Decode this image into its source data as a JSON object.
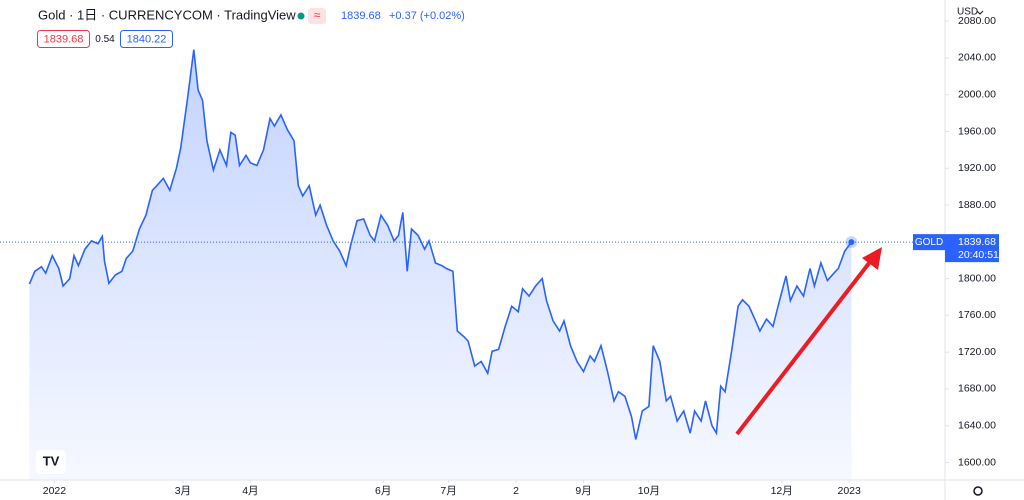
{
  "header": {
    "title": "Gold · 1日 · CURRENCYCOM · TradingView",
    "last": "1839.68",
    "change": "+0.37 (+0.02%)",
    "bid": "1839.68",
    "spread": "0.54",
    "ask": "1840.22",
    "currency": "USD"
  },
  "price_label": {
    "symbol": "GOLD",
    "price": "1839.68",
    "countdown": "20:40:51"
  },
  "chart_data": {
    "type": "area",
    "color": "#2962ff",
    "grid": false,
    "x": [
      -11.5,
      -9,
      -6,
      -4,
      -1,
      2,
      4,
      7,
      9,
      11,
      14,
      17,
      20,
      22,
      23,
      25,
      28,
      31,
      33,
      36,
      39,
      42,
      45,
      47,
      50,
      53,
      56,
      58,
      61,
      64,
      66,
      68,
      70,
      73,
      76,
      79,
      81,
      83,
      85,
      88,
      90,
      93,
      96,
      99,
      101,
      104,
      107,
      110,
      112,
      114,
      117,
      120,
      122,
      125,
      128,
      131,
      134,
      136,
      139,
      142,
      145,
      147,
      150,
      153,
      156,
      158,
      160,
      162,
      164,
      167,
      170,
      172,
      175,
      178,
      180,
      183,
      185,
      188,
      190,
      193,
      196,
      199,
      201,
      204,
      207,
      210,
      213,
      215,
      218,
      221,
      224,
      226,
      229,
      232,
      234,
      237,
      240,
      243,
      246,
      248,
      251,
      254,
      257,
      259,
      262,
      265,
      267,
      270,
      273,
      275,
      278,
      281,
      283,
      286,
      289,
      292,
      294,
      297,
      299,
      302,
      304,
      306,
      308,
      311,
      314,
      316,
      319,
      322,
      324,
      327,
      330,
      333,
      336,
      338,
      341,
      344,
      347,
      349,
      352,
      355,
      358,
      360,
      363,
      366
    ],
    "values": [
      1794,
      1808,
      1813,
      1806,
      1825,
      1811,
      1792,
      1800,
      1825,
      1814,
      1832,
      1841,
      1838,
      1846,
      1819,
      1795,
      1804,
      1808,
      1822,
      1830,
      1854,
      1869,
      1896,
      1901,
      1909,
      1896,
      1920,
      1942,
      1994,
      2049,
      2005,
      1994,
      1950,
      1918,
      1940,
      1923,
      1959,
      1956,
      1923,
      1934,
      1926,
      1923,
      1940,
      1974,
      1966,
      1978,
      1962,
      1950,
      1901,
      1890,
      1901,
      1869,
      1880,
      1858,
      1841,
      1830,
      1814,
      1836,
      1863,
      1865,
      1847,
      1841,
      1869,
      1858,
      1841,
      1847,
      1872,
      1808,
      1854,
      1847,
      1832,
      1841,
      1817,
      1814,
      1811,
      1808,
      1743,
      1737,
      1732,
      1705,
      1710,
      1697,
      1721,
      1723,
      1748,
      1770,
      1764,
      1789,
      1781,
      1792,
      1800,
      1776,
      1754,
      1743,
      1754,
      1727,
      1710,
      1699,
      1716,
      1710,
      1727,
      1699,
      1667,
      1677,
      1672,
      1650,
      1625,
      1656,
      1661,
      1727,
      1710,
      1667,
      1672,
      1645,
      1656,
      1632,
      1656,
      1645,
      1667,
      1640,
      1632,
      1683,
      1677,
      1721,
      1770,
      1777,
      1770,
      1754,
      1743,
      1756,
      1748,
      1776,
      1803,
      1776,
      1792,
      1781,
      1811,
      1792,
      1817,
      1798,
      1806,
      1811,
      1830,
      1839.68
    ],
    "xlim": [
      -25,
      409
    ],
    "ylim": [
      1581,
      2103
    ],
    "xticks": [
      {
        "value": 0,
        "label": "2022"
      },
      {
        "value": 59,
        "label": "3月"
      },
      {
        "value": 90,
        "label": "4月"
      },
      {
        "value": 151,
        "label": "6月"
      },
      {
        "value": 181,
        "label": "7月"
      },
      {
        "value": 212,
        "label": "2"
      },
      {
        "value": 243,
        "label": "9月"
      },
      {
        "value": 273,
        "label": "10月"
      },
      {
        "value": 334,
        "label": "12月"
      },
      {
        "value": 365,
        "label": "2023"
      }
    ],
    "yticks": [
      {
        "value": 1600,
        "label": "1600.00"
      },
      {
        "value": 1640,
        "label": "1640.00"
      },
      {
        "value": 1680,
        "label": "1680.00"
      },
      {
        "value": 1720,
        "label": "1720.00"
      },
      {
        "value": 1760,
        "label": "1760.00"
      },
      {
        "value": 1800,
        "label": "1800.00"
      },
      {
        "value": 1840,
        "label": "1840.00"
      },
      {
        "value": 1880,
        "label": "1880.00"
      },
      {
        "value": 1920,
        "label": "1920.00"
      },
      {
        "value": 1960,
        "label": "1960.00"
      },
      {
        "value": 2000,
        "label": "2000.00"
      },
      {
        "value": 2040,
        "label": "2040.00"
      },
      {
        "value": 2080,
        "label": "2080.00"
      }
    ]
  }
}
